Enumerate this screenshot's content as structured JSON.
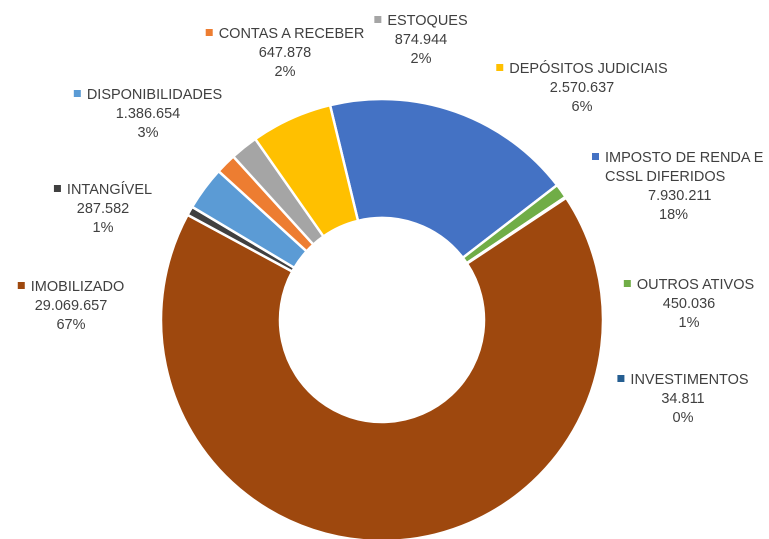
{
  "chart_data": {
    "type": "pie",
    "donut": true,
    "legend": "data labels beside slices",
    "slices": [
      {
        "name": "IMPOSTO DE RENDA E CSSL DIFERIDOS",
        "name_lines": [
          "IMPOSTO DE RENDA E",
          "CSSL DIFERIDOS"
        ],
        "value": 7930211,
        "value_label": "7.930.211",
        "pct_label": "18%",
        "color": "#4472C4"
      },
      {
        "name": "OUTROS ATIVOS",
        "name_lines": [
          "OUTROS ATIVOS"
        ],
        "value": 450036,
        "value_label": "450.036",
        "pct_label": "1%",
        "color": "#70AD47"
      },
      {
        "name": "INVESTIMENTOS",
        "name_lines": [
          "INVESTIMENTOS"
        ],
        "value": 34811,
        "value_label": "34.811",
        "pct_label": "0%",
        "color": "#255E91"
      },
      {
        "name": "IMOBILIZADO",
        "name_lines": [
          "IMOBILIZADO"
        ],
        "value": 29069657,
        "value_label": "29.069.657",
        "pct_label": "67%",
        "color": "#9E480E"
      },
      {
        "name": "INTANGÍVEL",
        "name_lines": [
          "INTANGÍVEL"
        ],
        "value": 287582,
        "value_label": "287.582",
        "pct_label": "1%",
        "color": "#404040"
      },
      {
        "name": "DISPONIBILIDADES",
        "name_lines": [
          "DISPONIBILIDADES"
        ],
        "value": 1386654,
        "value_label": "1.386.654",
        "pct_label": "3%",
        "color": "#5B9BD5"
      },
      {
        "name": "CONTAS A RECEBER",
        "name_lines": [
          "CONTAS A RECEBER"
        ],
        "value": 647878,
        "value_label": "647.878",
        "pct_label": "2%",
        "color": "#ED7D31"
      },
      {
        "name": "ESTOQUES",
        "name_lines": [
          "ESTOQUES"
        ],
        "value": 874944,
        "value_label": "874.944",
        "pct_label": "2%",
        "color": "#A5A5A5"
      },
      {
        "name": "DEPÓSITOS JUDICIAIS",
        "name_lines": [
          "DEPÓSITOS JUDICIAIS"
        ],
        "value": 2570637,
        "value_label": "2.570.637",
        "pct_label": "6%",
        "color": "#FFC000"
      }
    ]
  }
}
